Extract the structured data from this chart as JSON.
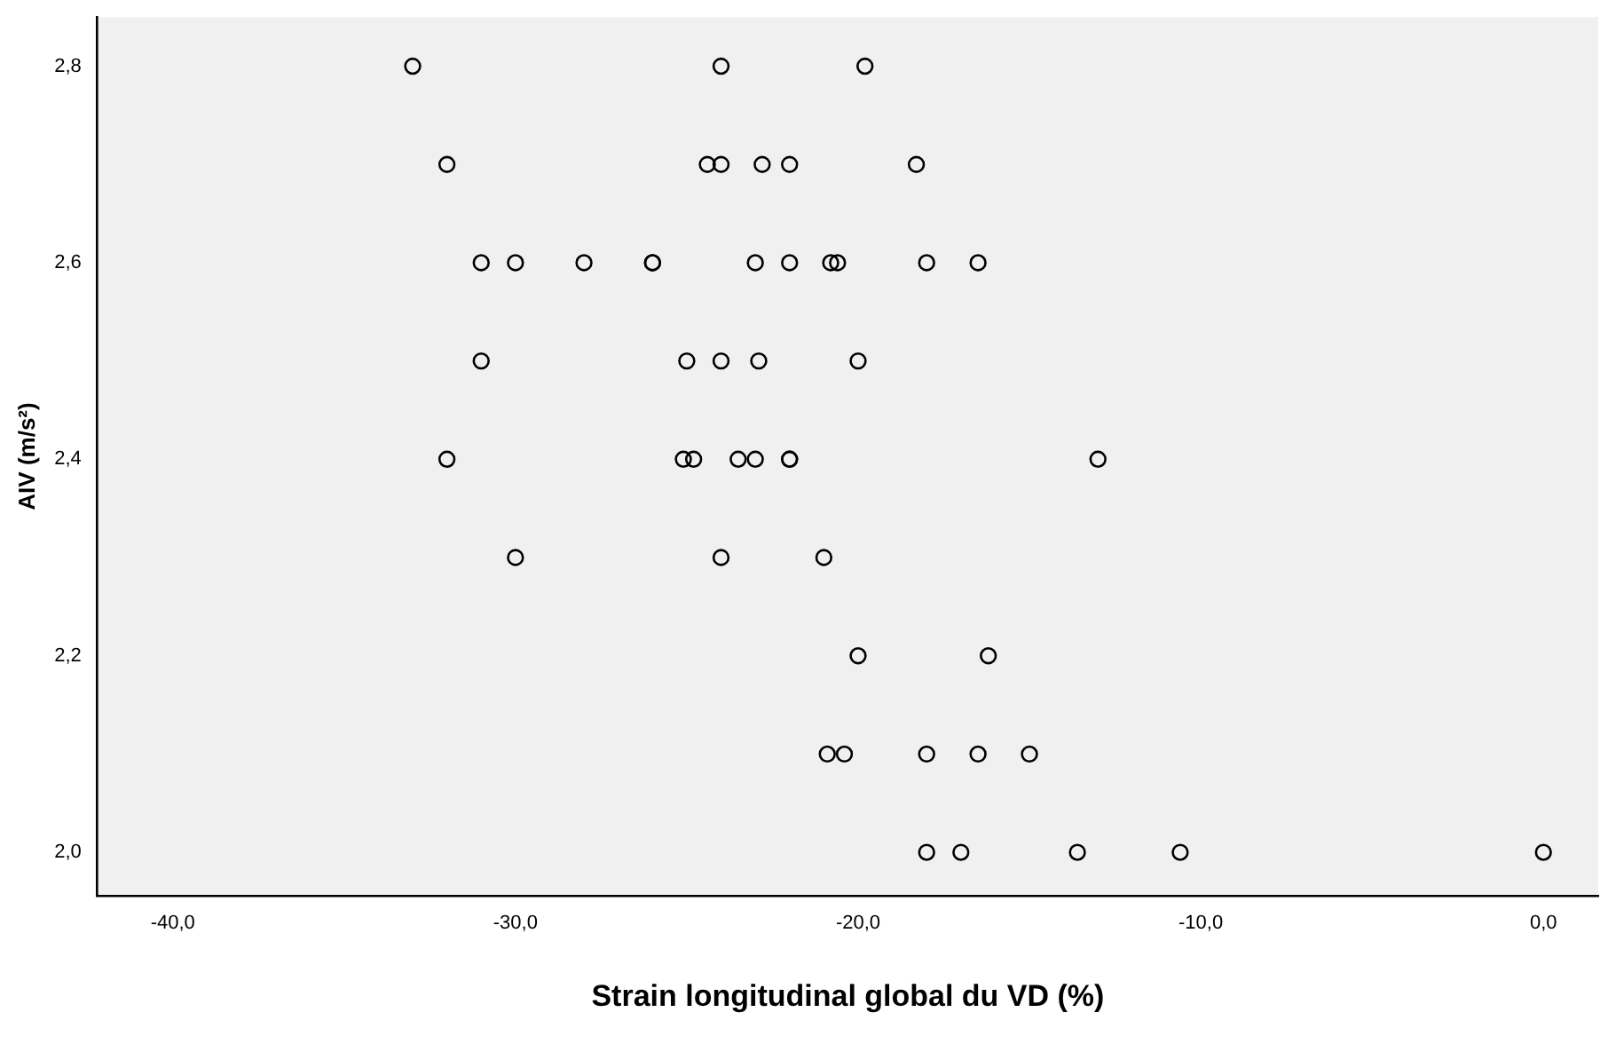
{
  "chart_data": {
    "type": "scatter",
    "xlabel": "Strain longitudinal global du VD (%)",
    "ylabel": "AIV (m/s²)",
    "x": [
      -33,
      -24,
      -19.8,
      -32,
      -24.4,
      -24,
      -22.8,
      -22,
      -18.3,
      -31,
      -30,
      -28,
      -26,
      -26,
      -23,
      -22,
      -20.8,
      -20.6,
      -18,
      -16.5,
      -31,
      -25,
      -24,
      -22.9,
      -20,
      -32,
      -25.1,
      -24.8,
      -23.5,
      -23,
      -22,
      -22,
      -13,
      -30,
      -24,
      -21,
      -20,
      -16.2,
      -20.9,
      -20.4,
      -18,
      -16.5,
      -15,
      -18,
      -17,
      -13.6,
      -10.6,
      0
    ],
    "series": [
      {
        "color": "#000000",
        "values": [
          2.8,
          2.8,
          2.8,
          2.7,
          2.7,
          2.7,
          2.7,
          2.7,
          2.7,
          2.6,
          2.6,
          2.6,
          2.6,
          2.6,
          2.6,
          2.6,
          2.6,
          2.6,
          2.6,
          2.6,
          2.5,
          2.5,
          2.5,
          2.5,
          2.5,
          2.4,
          2.4,
          2.4,
          2.4,
          2.4,
          2.4,
          2.4,
          2.4,
          2.3,
          2.3,
          2.3,
          2.2,
          2.2,
          2.1,
          2.1,
          2.1,
          2.1,
          2.1,
          2.0,
          2.0,
          2.0,
          2.0,
          2.0
        ]
      }
    ],
    "xlim": [
      -42.2,
      1.6
    ],
    "ylim": [
      1.956,
      2.85
    ],
    "xticks": [
      {
        "value": -40,
        "label": "-40,0"
      },
      {
        "value": -30,
        "label": "-30,0"
      },
      {
        "value": -20,
        "label": "-20,0"
      },
      {
        "value": -10,
        "label": "-10,0"
      },
      {
        "value": 0,
        "label": "0,0"
      }
    ],
    "yticks": [
      {
        "value": 2.0,
        "label": "2,0"
      },
      {
        "value": 2.2,
        "label": "2,2"
      },
      {
        "value": 2.4,
        "label": "2,4"
      },
      {
        "value": 2.6,
        "label": "2,6"
      },
      {
        "value": 2.8,
        "label": "2,8"
      }
    ],
    "marker": "circle",
    "grid": false,
    "legend": false
  }
}
